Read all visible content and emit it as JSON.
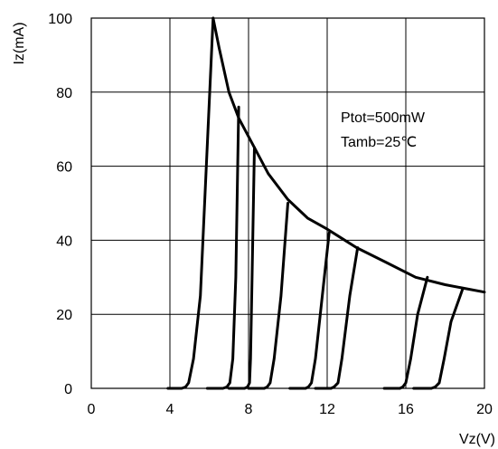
{
  "chart_data": {
    "type": "line",
    "title": "",
    "xlabel": "Vz(V)",
    "ylabel": "Iz(mA)",
    "xlim": [
      0,
      20
    ],
    "ylim": [
      0,
      100
    ],
    "xticks": [
      0,
      4,
      8,
      12,
      16,
      20
    ],
    "yticks": [
      0,
      20,
      40,
      60,
      80,
      100
    ],
    "grid": true,
    "annotations": [
      "Ptot=500mW",
      "Tamb=25℃"
    ],
    "series": [
      {
        "x": [
          3.9,
          4.6,
          4.8,
          4.95,
          5.2,
          5.55,
          6.2
        ],
        "y": [
          0,
          0,
          0.4,
          1.5,
          8,
          25,
          100
        ]
      },
      {
        "x": [
          5.9,
          6.7,
          6.9,
          7.05,
          7.2,
          7.35,
          7.5
        ],
        "y": [
          0,
          0,
          0.4,
          1.5,
          8,
          30,
          76
        ]
      },
      {
        "x": [
          7.0,
          7.8,
          7.95,
          8.05,
          8.1,
          8.18,
          8.3
        ],
        "y": [
          0,
          0,
          0.4,
          1.5,
          8,
          30,
          65
        ]
      },
      {
        "x": [
          8.0,
          8.8,
          8.95,
          9.1,
          9.3,
          9.65,
          10.0
        ],
        "y": [
          0,
          0,
          0.4,
          1.5,
          8,
          25,
          50
        ]
      },
      {
        "x": [
          10.1,
          10.9,
          11.05,
          11.2,
          11.4,
          11.75,
          12.1
        ],
        "y": [
          0,
          0,
          0.4,
          1.5,
          8,
          25,
          42
        ]
      },
      {
        "x": [
          11.4,
          12.2,
          12.35,
          12.55,
          12.75,
          13.15,
          13.55
        ],
        "y": [
          0,
          0,
          0.4,
          1.5,
          8,
          25,
          38
        ]
      },
      {
        "x": [
          14.9,
          15.7,
          15.85,
          16.0,
          16.25,
          16.6,
          17.1
        ],
        "y": [
          0,
          0,
          0.4,
          1.5,
          8,
          20,
          30
        ]
      },
      {
        "x": [
          16.4,
          17.3,
          17.5,
          17.7,
          17.95,
          18.3,
          18.9
        ],
        "y": [
          0,
          0,
          0.4,
          1.5,
          8,
          18,
          27
        ]
      },
      {
        "x": [
          6.2,
          6.5,
          7.0,
          7.5,
          8.3,
          9.0,
          10.0,
          11.0,
          12.0,
          13.5,
          15.0,
          16.5,
          18.0,
          19.0,
          20.0
        ],
        "y": [
          100,
          92,
          80,
          73,
          65,
          58,
          51,
          46,
          43,
          38,
          34,
          30,
          28,
          27,
          26
        ]
      }
    ]
  },
  "colors": {
    "line": "#000000",
    "grid": "#000000",
    "background": "#ffffff"
  }
}
